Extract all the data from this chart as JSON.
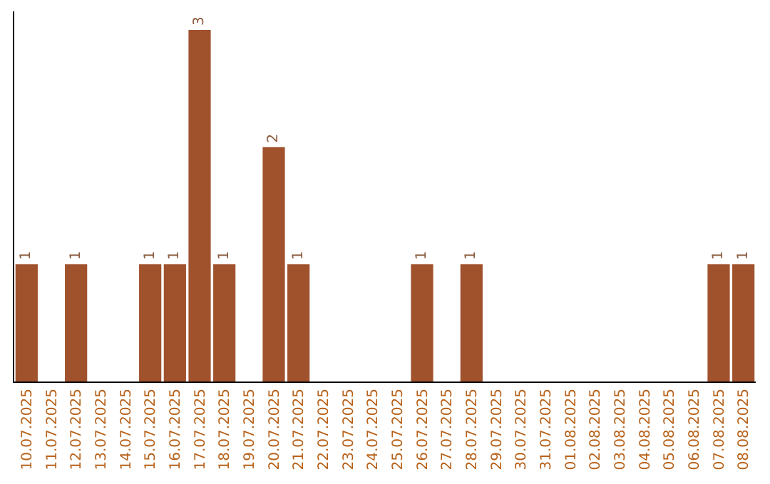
{
  "chart_data": {
    "type": "bar",
    "categories": [
      "10.07.2025",
      "11.07.2025",
      "12.07.2025",
      "13.07.2025",
      "14.07.2025",
      "15.07.2025",
      "16.07.2025",
      "17.07.2025",
      "18.07.2025",
      "19.07.2025",
      "20.07.2025",
      "21.07.2025",
      "22.07.2025",
      "23.07.2025",
      "24.07.2025",
      "25.07.2025",
      "26.07.2025",
      "27.07.2025",
      "28.07.2025",
      "29.07.2025",
      "30.07.2025",
      "31.07.2025",
      "01.08.2025",
      "02.08.2025",
      "03.08.2025",
      "04.08.2025",
      "05.08.2025",
      "06.08.2025",
      "07.08.2025",
      "08.08.2025"
    ],
    "values": [
      1,
      0,
      1,
      0,
      0,
      1,
      1,
      3,
      1,
      0,
      2,
      1,
      0,
      0,
      0,
      0,
      1,
      0,
      1,
      0,
      0,
      0,
      0,
      0,
      0,
      0,
      0,
      0,
      1,
      1
    ],
    "value_labels": [
      "1",
      null,
      "1",
      null,
      null,
      "1",
      "1",
      "3",
      "1",
      null,
      "2",
      "1",
      null,
      null,
      null,
      null,
      "1",
      null,
      "1",
      null,
      null,
      null,
      null,
      null,
      null,
      null,
      null,
      null,
      "1",
      "1"
    ],
    "color": "#a0522d",
    "grid": false,
    "legend": false,
    "tick_labels": "x"
  }
}
